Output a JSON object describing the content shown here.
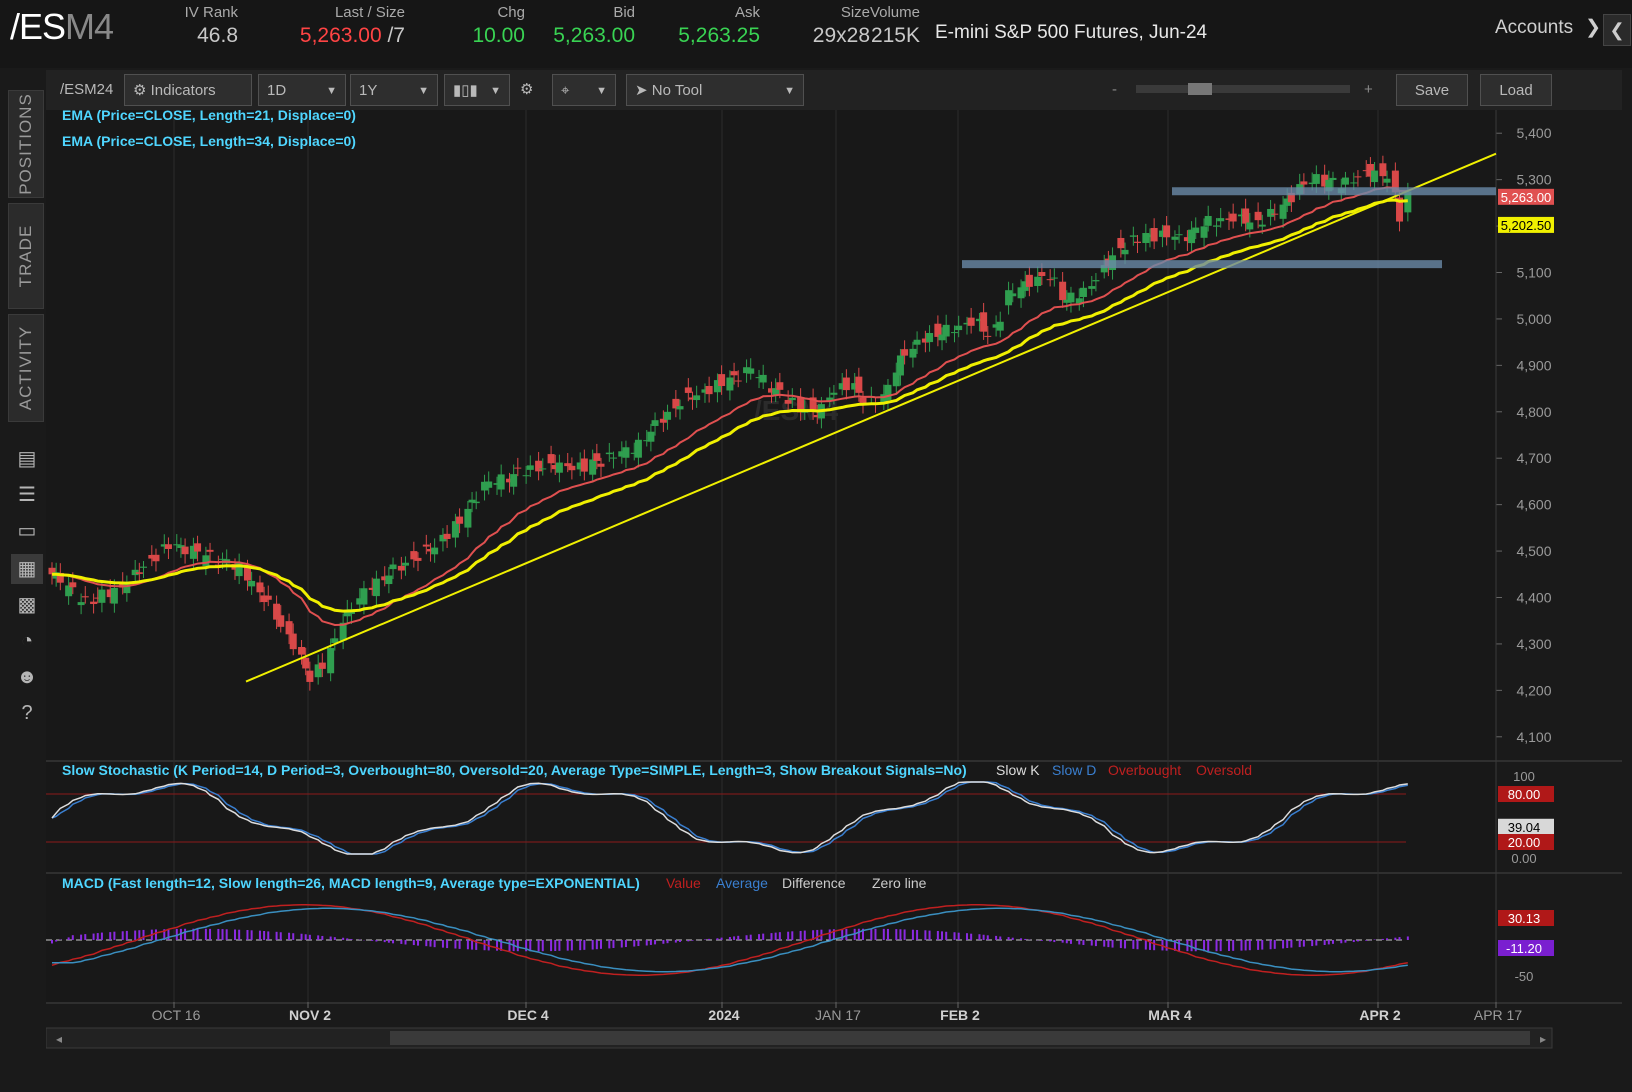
{
  "header": {
    "symbol_main": "/ES",
    "symbol_suffix": "M4",
    "quotes": [
      {
        "label": "IV Rank",
        "value": "46.8",
        "color": "#c8c8c8"
      },
      {
        "label": "Last / Size",
        "value": "5,263.00",
        "value_extra": " /7",
        "color": "#ff4444"
      },
      {
        "label": "Chg",
        "value": "10.00",
        "color": "#39d353"
      },
      {
        "label": "Bid",
        "value": "5,263.00",
        "color": "#39d353"
      },
      {
        "label": "Ask",
        "value": "5,263.25",
        "color": "#39d353"
      },
      {
        "label": "Size",
        "value": "29x28",
        "color": "#c8c8c8"
      },
      {
        "label": "Volume",
        "value": "215K",
        "color": "#c8c8c8"
      }
    ],
    "description": "E-mini S&P 500 Futures, Jun-24",
    "accounts_label": "Accounts"
  },
  "sidebar": {
    "tabs": [
      "POSITIONS",
      "TRADE",
      "ACTIVITY"
    ],
    "icons": [
      "monitor-icon",
      "list-icon",
      "tv-icon",
      "chart-icon",
      "grid-icon",
      "gauge-icon",
      "people-icon",
      "help-icon"
    ]
  },
  "toolbar": {
    "symbol": "/ESM24",
    "indicators": "Indicators",
    "aggregation": "1D",
    "timeframe": "1Y",
    "tool": "No Tool",
    "save": "Save",
    "load": "Load"
  },
  "chart_data": {
    "type": "candlestick",
    "watermark": "/ESM4",
    "studies": [
      {
        "label": "EMA (Price=CLOSE, Length=21, Displace=0)",
        "color": "#e05050"
      },
      {
        "label": "EMA (Price=CLOSE, Length=34, Displace=0)",
        "color": "#f0f000"
      }
    ],
    "x_ticks": [
      "OCT 16",
      "NOV 2",
      "DEC 4",
      "2024",
      "JAN 17",
      "FEB 2",
      "MAR 4",
      "APR 2",
      "APR 17"
    ],
    "y_ticks": [
      "5,400",
      "5,300",
      "5,200",
      "5,100",
      "5,000",
      "4,900",
      "4,800",
      "4,700",
      "4,600",
      "4,500",
      "4,400",
      "4,300",
      "4,200",
      "4,100"
    ],
    "ylim": [
      4050,
      5450
    ],
    "price_labels": [
      {
        "value": "5,263.00",
        "num": 5263,
        "bg": "#e05050",
        "fg": "#ffffff"
      },
      {
        "value": "5,202.50",
        "num": 5202.5,
        "bg": "#f0f000",
        "fg": "#000000"
      }
    ],
    "support_zones": [
      5275,
      5118
    ],
    "trendline": [
      4219,
      5356
    ],
    "stochastic": {
      "label": "Slow Stochastic (K Period=14, D Period=3, Overbought=80, Oversold=20, Average Type=SIMPLE, Length=3, Show Breakout Signals=No)",
      "legend": [
        {
          "name": "Slow K",
          "color": "#dddddd"
        },
        {
          "name": "Slow D",
          "color": "#3a7fd0"
        },
        {
          "name": "Overbought",
          "color": "#c02020"
        },
        {
          "name": "Oversold",
          "color": "#c02020"
        }
      ],
      "axis": [
        "100",
        "80.00",
        "39.04",
        "20.00",
        "0.00"
      ],
      "ylim": [
        0,
        100
      ],
      "overbought": 80,
      "oversold": 20
    },
    "macd": {
      "label": "MACD (Fast length=12, Slow length=26, MACD length=9, Average type=EXPONENTIAL)",
      "legend": [
        {
          "name": "Value",
          "color": "#c02020"
        },
        {
          "name": "Average",
          "color": "#3a7fd0"
        },
        {
          "name": "Difference",
          "color": "#cccccc"
        },
        {
          "name": "Zero line",
          "color": "#cccccc"
        }
      ],
      "axis": [
        "30.13",
        "-11.20",
        "-50"
      ],
      "colors": {
        "hist": "#8b2be2",
        "value": "#c02020",
        "avg": "#3a8fc0"
      }
    }
  }
}
